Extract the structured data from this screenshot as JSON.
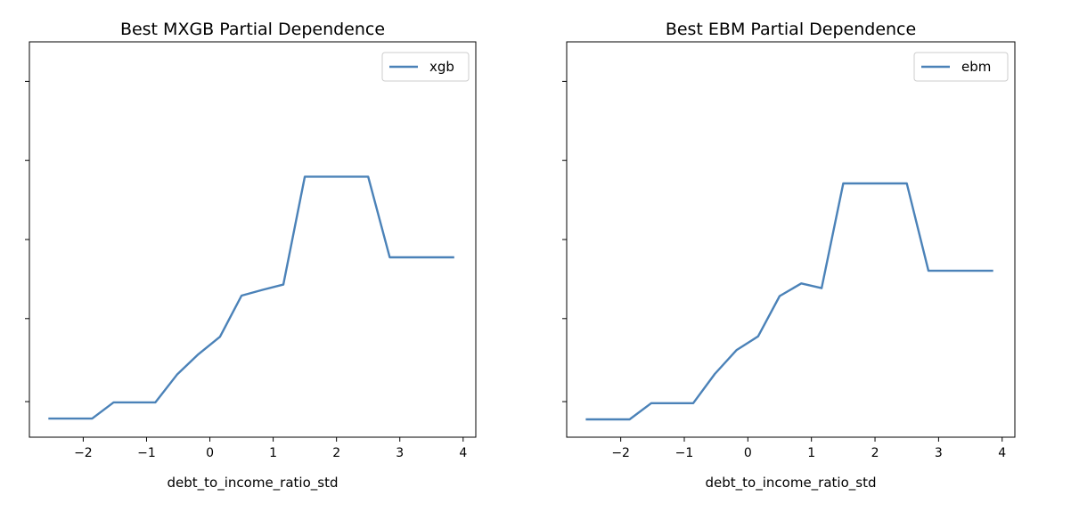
{
  "chart_data": [
    {
      "type": "line",
      "title": "Best MXGB Partial Dependence",
      "xlabel": "debt_to_income_ratio_std",
      "ylabel": "",
      "xlim": [
        -2.85,
        4.2
      ],
      "ylim": [
        0.0,
        1.0
      ],
      "x_ticks": [
        -2,
        -1,
        0,
        1,
        2,
        3,
        4
      ],
      "x_tick_labels": [
        "−2",
        "−1",
        "0",
        "1",
        "2",
        "3",
        "4"
      ],
      "y_ticks": [
        0.09,
        0.3,
        0.5,
        0.7,
        0.9
      ],
      "y_tick_labels_visible": false,
      "grid": false,
      "legend_position": "top-right",
      "series": [
        {
          "name": "xgb",
          "color": "#4b82b8",
          "x": [
            -2.55,
            -1.86,
            -1.52,
            -0.86,
            -0.52,
            -0.18,
            0.16,
            0.5,
            0.84,
            1.16,
            1.5,
            2.17,
            2.5,
            2.84,
            3.86
          ],
          "y": [
            0.047,
            0.047,
            0.088,
            0.088,
            0.158,
            0.21,
            0.254,
            0.358,
            0.373,
            0.386,
            0.659,
            0.659,
            0.659,
            0.455,
            0.455
          ]
        }
      ]
    },
    {
      "type": "line",
      "title": "Best EBM Partial Dependence",
      "xlabel": "debt_to_income_ratio_std",
      "ylabel": "",
      "xlim": [
        -2.85,
        4.2
      ],
      "ylim": [
        0.0,
        1.0
      ],
      "x_ticks": [
        -2,
        -1,
        0,
        1,
        2,
        3,
        4
      ],
      "x_tick_labels": [
        "−2",
        "−1",
        "0",
        "1",
        "2",
        "3",
        "4"
      ],
      "y_ticks": [
        0.09,
        0.3,
        0.5,
        0.7,
        0.9
      ],
      "y_tick_labels_visible": false,
      "grid": false,
      "legend_position": "top-right",
      "series": [
        {
          "name": "ebm",
          "color": "#4b82b8",
          "x": [
            -2.55,
            -1.86,
            -1.52,
            -0.86,
            -0.52,
            -0.18,
            0.16,
            0.5,
            0.84,
            1.16,
            1.5,
            2.17,
            2.5,
            2.84,
            3.86
          ],
          "y": [
            0.045,
            0.045,
            0.086,
            0.086,
            0.16,
            0.22,
            0.255,
            0.357,
            0.389,
            0.377,
            0.642,
            0.642,
            0.642,
            0.421,
            0.421
          ]
        }
      ]
    }
  ]
}
